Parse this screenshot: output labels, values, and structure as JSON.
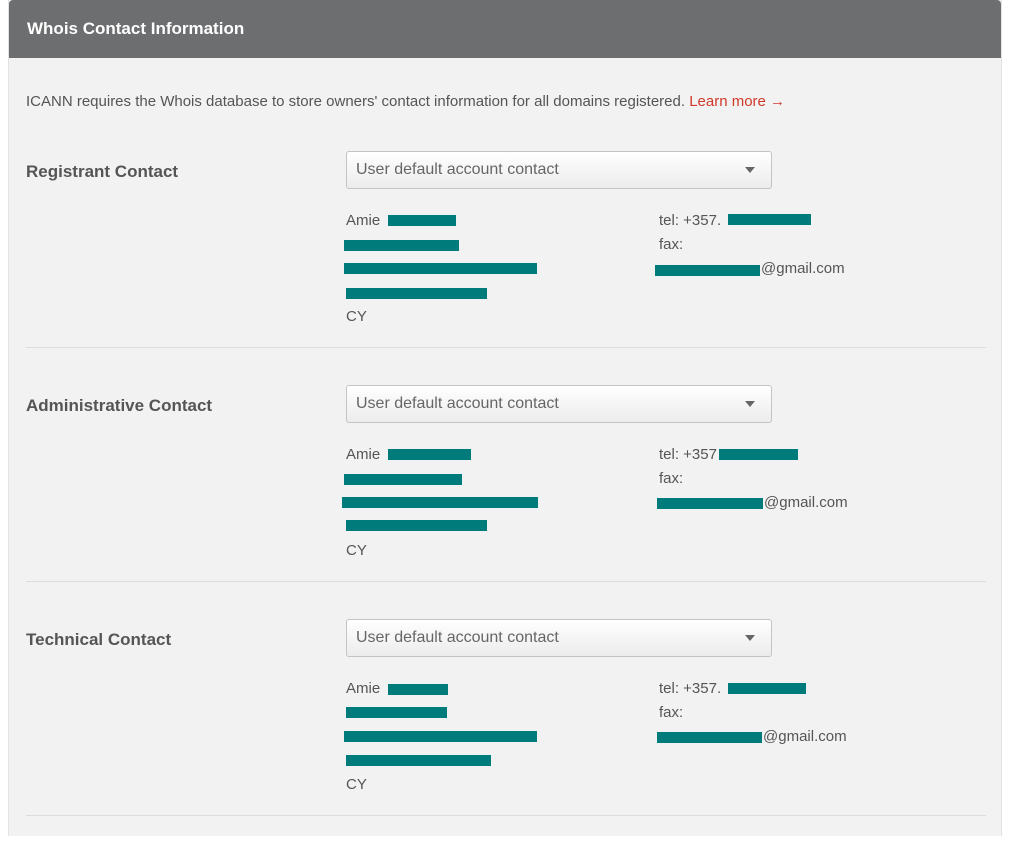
{
  "header": {
    "title": "Whois Contact Information"
  },
  "intro": {
    "text": "ICANN requires the Whois database to store owners' contact information for all domains registered.",
    "link_label": "Learn more →"
  },
  "contacts": [
    {
      "label": "Registrant Contact",
      "select_value": "User default account contact",
      "name": "Amie",
      "country": "CY",
      "tel": "tel: +357.",
      "fax": "fax:",
      "email_suffix": "@gmail.com"
    },
    {
      "label": "Administrative Contact",
      "select_value": "User default account contact",
      "name": "Amie",
      "country": "CY",
      "tel": "tel: +357",
      "fax": "fax:",
      "email_suffix": "@gmail.com"
    },
    {
      "label": "Technical Contact",
      "select_value": "User default account contact",
      "name": "Amie",
      "country": "CY",
      "tel": "tel: +357.",
      "fax": "fax:",
      "email_suffix": "@gmail.com"
    }
  ],
  "colors": {
    "header_bg": "#6d6e70",
    "link": "#d0392b",
    "redaction": "#007b7b"
  },
  "icons": {
    "select_caret": "chevron-down-icon"
  }
}
